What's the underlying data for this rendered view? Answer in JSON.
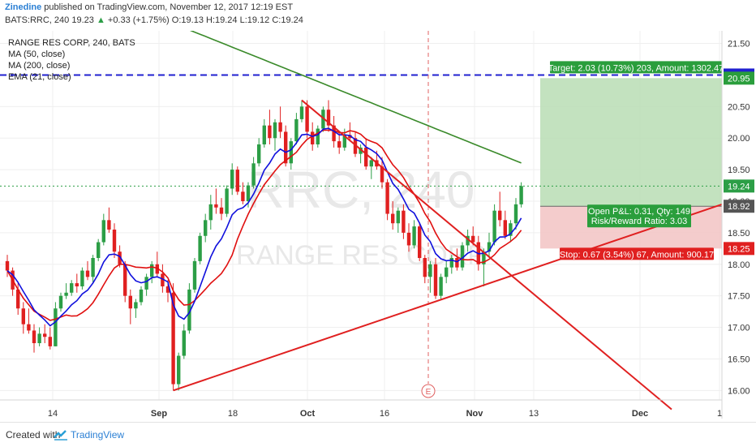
{
  "header": {
    "author": "Zinedine",
    "published": "published on TradingView.com, November 12, 2017 12:19 EST",
    "symbol": "BATS:RRC, 240",
    "last": "19.23",
    "change": "+0.33 (+1.75%)",
    "open": "O:19.13",
    "high": "H:19.24",
    "low": "L:19.12",
    "close": "C:19.24"
  },
  "legend": {
    "title": "RANGE RES CORP, 240, BATS",
    "ma50": "MA (50, close)",
    "ma200": "MA (200, close)",
    "ema21": "EMA (21, close)"
  },
  "watermark": {
    "ticker": "RRC, 240",
    "name": "RANGE RES CORP"
  },
  "footer": {
    "created": "Created with",
    "brand": "TradingView"
  },
  "colors": {
    "up": "#2c9e46",
    "down": "#e02020",
    "ma50": "#e01010",
    "ma200": "#3a8a2a",
    "ema21": "#1010dd",
    "target": "#2a9e3c",
    "stop": "#e02020",
    "level": "#2020d0",
    "price": "#2c9e46"
  },
  "chart_data": {
    "type": "candlestick",
    "y_axis": {
      "min": 15.85,
      "max": 21.7,
      "ticks": [
        "21.50",
        "21.00",
        "20.50",
        "20.00",
        "19.50",
        "19.00",
        "18.50",
        "18.00",
        "17.50",
        "17.00",
        "16.50",
        "16.00"
      ]
    },
    "x_axis": {
      "ticks": [
        "14",
        "Sep",
        "18",
        "Oct",
        "16",
        "Nov",
        "13",
        "Dec",
        "1"
      ]
    },
    "price_tags": [
      {
        "label": "21.00",
        "value": 21.0,
        "color": "#2020d0"
      },
      {
        "label": "20.95",
        "value": 20.95,
        "color": "#2a9e3c"
      },
      {
        "label": "19.24",
        "value": 19.24,
        "color": "#2c9e46"
      },
      {
        "label": "18.92",
        "value": 18.92,
        "color": "#555555"
      },
      {
        "label": "18.25",
        "value": 18.25,
        "color": "#e02020"
      }
    ],
    "position": {
      "entry": 18.92,
      "target": 20.95,
      "stop": 18.25,
      "target_label": "Target: 2.03 (10.73%) 203, Amount: 1302.47",
      "stop_label": "Stop: 0.67 (3.54%) 67, Amount: 900.17",
      "pnl_label": "Open P&L: 0.31, Qty: 149",
      "rr_label": "Risk/Reward Ratio: 3.03"
    },
    "horizontal_level": 21.0,
    "event_marker": "E",
    "candles": [
      [
        18.05,
        18.15,
        17.8,
        17.9
      ],
      [
        17.9,
        17.95,
        17.5,
        17.6
      ],
      [
        17.6,
        17.7,
        17.2,
        17.3
      ],
      [
        17.3,
        17.4,
        16.9,
        17.05
      ],
      [
        17.05,
        17.3,
        16.9,
        16.95
      ],
      [
        16.95,
        17.05,
        16.6,
        16.75
      ],
      [
        16.75,
        17.0,
        16.7,
        16.9
      ],
      [
        16.9,
        17.05,
        16.75,
        16.85
      ],
      [
        16.85,
        17.0,
        16.65,
        16.7
      ],
      [
        16.7,
        17.4,
        16.7,
        17.3
      ],
      [
        17.3,
        17.55,
        17.25,
        17.5
      ],
      [
        17.5,
        17.7,
        17.45,
        17.55
      ],
      [
        17.55,
        17.75,
        17.5,
        17.7
      ],
      [
        17.7,
        17.85,
        17.55,
        17.65
      ],
      [
        17.65,
        17.95,
        17.6,
        17.9
      ],
      [
        17.9,
        18.05,
        17.75,
        17.8
      ],
      [
        17.8,
        18.15,
        17.7,
        18.1
      ],
      [
        18.1,
        18.4,
        18.05,
        18.35
      ],
      [
        18.35,
        18.8,
        18.3,
        18.7
      ],
      [
        18.7,
        18.9,
        18.5,
        18.55
      ],
      [
        18.55,
        18.65,
        18.1,
        18.2
      ],
      [
        18.2,
        18.3,
        17.95,
        18.0
      ],
      [
        18.0,
        18.05,
        17.4,
        17.5
      ],
      [
        17.5,
        17.6,
        17.05,
        17.3
      ],
      [
        17.3,
        17.45,
        17.15,
        17.4
      ],
      [
        17.4,
        17.65,
        17.35,
        17.6
      ],
      [
        17.6,
        17.85,
        17.5,
        17.8
      ],
      [
        17.8,
        18.05,
        17.7,
        18.0
      ],
      [
        18.0,
        18.2,
        17.8,
        17.85
      ],
      [
        17.85,
        18.0,
        17.55,
        17.65
      ],
      [
        17.65,
        17.75,
        17.4,
        17.55
      ],
      [
        17.55,
        17.7,
        16.0,
        16.1
      ],
      [
        16.1,
        16.6,
        16.0,
        16.55
      ],
      [
        16.55,
        17.05,
        16.5,
        16.95
      ],
      [
        16.95,
        17.7,
        16.9,
        17.6
      ],
      [
        17.6,
        18.1,
        17.55,
        18.05
      ],
      [
        18.05,
        18.5,
        18.0,
        18.45
      ],
      [
        18.45,
        18.8,
        18.35,
        18.7
      ],
      [
        18.7,
        19.1,
        18.55,
        18.95
      ],
      [
        18.95,
        19.2,
        18.8,
        18.9
      ],
      [
        18.9,
        19.05,
        18.7,
        18.8
      ],
      [
        18.8,
        19.25,
        18.75,
        19.2
      ],
      [
        19.2,
        19.6,
        19.1,
        19.5
      ],
      [
        19.5,
        19.55,
        19.1,
        19.15
      ],
      [
        19.15,
        19.3,
        18.95,
        19.0
      ],
      [
        19.0,
        19.3,
        18.9,
        19.25
      ],
      [
        19.25,
        19.7,
        19.2,
        19.6
      ],
      [
        19.6,
        20.0,
        19.55,
        19.9
      ],
      [
        19.9,
        20.3,
        19.85,
        20.2
      ],
      [
        20.2,
        20.45,
        19.9,
        20.0
      ],
      [
        20.0,
        20.3,
        19.8,
        20.25
      ],
      [
        20.25,
        20.5,
        20.0,
        20.1
      ],
      [
        20.1,
        20.2,
        19.55,
        19.6
      ],
      [
        19.6,
        20.0,
        19.5,
        19.95
      ],
      [
        19.95,
        20.4,
        19.9,
        20.3
      ],
      [
        20.3,
        20.6,
        20.25,
        20.5
      ],
      [
        20.5,
        20.6,
        20.0,
        20.1
      ],
      [
        20.1,
        20.25,
        19.8,
        19.9
      ],
      [
        19.9,
        20.2,
        19.85,
        20.15
      ],
      [
        20.15,
        20.5,
        20.1,
        20.45
      ],
      [
        20.45,
        20.6,
        20.1,
        20.2
      ],
      [
        20.2,
        20.35,
        19.85,
        19.95
      ],
      [
        19.95,
        20.1,
        19.75,
        19.85
      ],
      [
        19.85,
        20.15,
        19.8,
        20.05
      ],
      [
        20.05,
        20.25,
        19.95,
        20.0
      ],
      [
        20.0,
        20.1,
        19.7,
        19.75
      ],
      [
        19.75,
        19.9,
        19.6,
        19.85
      ],
      [
        19.85,
        20.0,
        19.5,
        19.55
      ],
      [
        19.55,
        19.7,
        19.35,
        19.65
      ],
      [
        19.65,
        19.8,
        19.5,
        19.55
      ],
      [
        19.55,
        19.7,
        19.2,
        19.3
      ],
      [
        19.3,
        19.35,
        18.7,
        18.8
      ],
      [
        18.8,
        19.0,
        18.55,
        18.65
      ],
      [
        18.65,
        18.9,
        18.5,
        18.85
      ],
      [
        18.85,
        18.95,
        18.4,
        18.5
      ],
      [
        18.5,
        18.65,
        18.2,
        18.3
      ],
      [
        18.3,
        18.7,
        18.25,
        18.6
      ],
      [
        18.6,
        18.65,
        18.05,
        18.1
      ],
      [
        18.1,
        18.15,
        17.7,
        17.8
      ],
      [
        17.8,
        18.05,
        17.55,
        18.0
      ],
      [
        18.0,
        18.1,
        17.45,
        17.5
      ],
      [
        17.5,
        17.85,
        17.45,
        17.8
      ],
      [
        17.8,
        18.05,
        17.7,
        17.95
      ],
      [
        17.95,
        18.15,
        17.85,
        18.1
      ],
      [
        18.1,
        18.25,
        17.9,
        17.95
      ],
      [
        17.95,
        18.35,
        17.9,
        18.3
      ],
      [
        18.3,
        18.55,
        18.2,
        18.45
      ],
      [
        18.45,
        18.6,
        18.3,
        18.35
      ],
      [
        18.35,
        18.45,
        17.9,
        18.0
      ],
      [
        18.0,
        18.25,
        17.65,
        18.2
      ],
      [
        18.2,
        18.5,
        18.1,
        18.35
      ],
      [
        18.35,
        18.95,
        18.3,
        18.85
      ],
      [
        18.85,
        19.15,
        18.6,
        18.7
      ],
      [
        18.7,
        18.85,
        18.4,
        18.45
      ],
      [
        18.45,
        18.7,
        18.35,
        18.65
      ],
      [
        18.65,
        19.05,
        18.55,
        18.95
      ],
      [
        18.95,
        19.3,
        18.9,
        19.24
      ]
    ]
  }
}
